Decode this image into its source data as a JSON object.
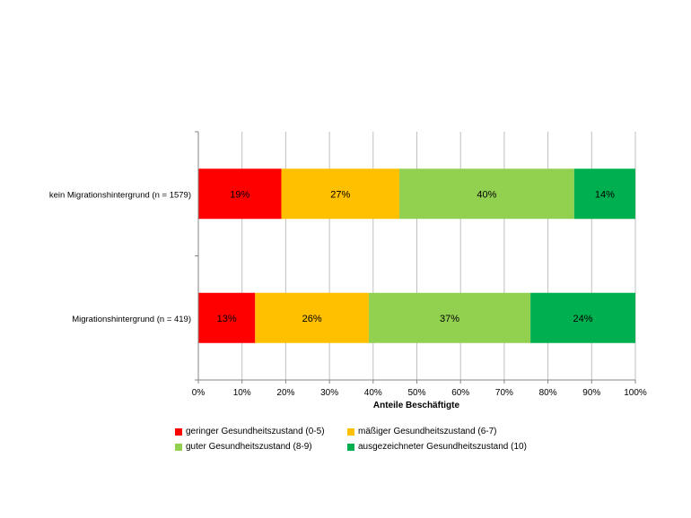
{
  "chart_data": {
    "type": "bar",
    "orientation": "horizontal",
    "stacked": true,
    "title": "",
    "xlabel": "Anteile Beschäftigte",
    "ylabel": "",
    "xlim": [
      0,
      100
    ],
    "x_tick_labels": [
      "0%",
      "10%",
      "20%",
      "30%",
      "40%",
      "50%",
      "60%",
      "70%",
      "80%",
      "90%",
      "100%"
    ],
    "grid": true,
    "legend_position": "bottom",
    "categories": [
      "kein Migrationshintergrund (n = 1579)",
      "Migrationshintergrund (n = 419)"
    ],
    "series": [
      {
        "name": "geringer Gesundheitszustand (0-5)",
        "color": "#ff0000",
        "values": [
          19,
          13
        ],
        "labels": [
          "19%",
          "13%"
        ]
      },
      {
        "name": "mäßiger Gesundheitszustand (6-7)",
        "color": "#ffc000",
        "values": [
          27,
          26
        ],
        "labels": [
          "27%",
          "26%"
        ]
      },
      {
        "name": "guter Gesundheitszustand (8-9)",
        "color": "#92d050",
        "values": [
          40,
          37
        ],
        "labels": [
          "40%",
          "37%"
        ]
      },
      {
        "name": "ausgezeichneter Gesundheitszustand (10)",
        "color": "#00b050",
        "values": [
          14,
          24
        ],
        "labels": [
          "14%",
          "24%"
        ]
      }
    ]
  }
}
